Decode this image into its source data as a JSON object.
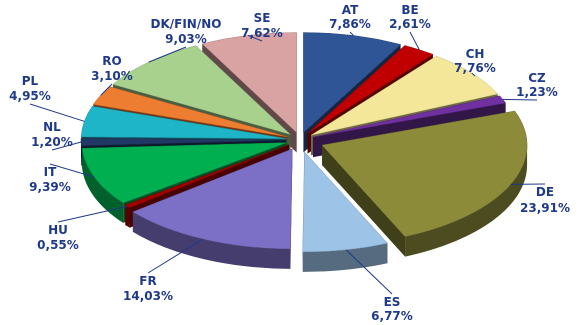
{
  "chart_data": {
    "type": "pie",
    "title": "",
    "style": "3d-exploded",
    "slices": [
      {
        "label": "AT",
        "value": 7.86,
        "value_text": "7,86%",
        "color": "#2f5597"
      },
      {
        "label": "BE",
        "value": 2.61,
        "value_text": "2,61%",
        "color": "#c00000"
      },
      {
        "label": "CH",
        "value": 7.76,
        "value_text": "7,76%",
        "color": "#f5e79a"
      },
      {
        "label": "CZ",
        "value": 1.23,
        "value_text": "1,23%",
        "color": "#7030a0"
      },
      {
        "label": "DE",
        "value": 23.91,
        "value_text": "23,91%",
        "color": "#8b8b3a"
      },
      {
        "label": "ES",
        "value": 6.77,
        "value_text": "6,77%",
        "color": "#9dc3e6"
      },
      {
        "label": "FR",
        "value": 14.03,
        "value_text": "14,03%",
        "color": "#7b6fc6"
      },
      {
        "label": "HU",
        "value": 0.55,
        "value_text": "0,55%",
        "color": "#a00000"
      },
      {
        "label": "IT",
        "value": 9.39,
        "value_text": "9,39%",
        "color": "#00b050"
      },
      {
        "label": "NL",
        "value": 1.2,
        "value_text": "1,20%",
        "color": "#203864"
      },
      {
        "label": "PL",
        "value": 4.95,
        "value_text": "4,95%",
        "color": "#1fb5c9"
      },
      {
        "label": "RO",
        "value": 3.1,
        "value_text": "3,10%",
        "color": "#ed7d31"
      },
      {
        "label": "DK/FIN/NO",
        "value": 9.03,
        "value_text": "9,03%",
        "color": "#a9d18e"
      },
      {
        "label": "SE",
        "value": 7.62,
        "value_text": "7,62%",
        "color": "#d9a3a3"
      }
    ]
  }
}
